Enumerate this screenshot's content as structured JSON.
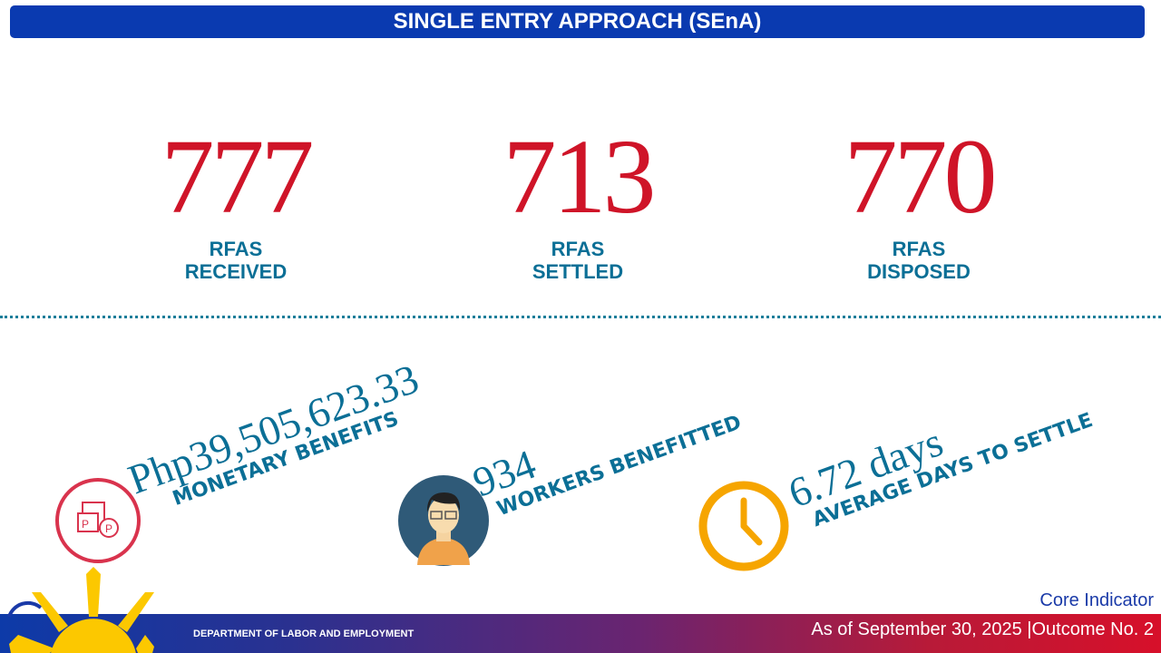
{
  "title": "SINGLE ENTRY APPROACH (SEnA)",
  "stats": [
    {
      "value": "777",
      "line1": "RFAS",
      "line2": "RECEIVED"
    },
    {
      "value": "713",
      "line1": "RFAS",
      "line2": "SETTLED"
    },
    {
      "value": "770",
      "line1": "RFAS",
      "line2": "DISPOSED"
    }
  ],
  "metrics": [
    {
      "value": "Php39,505,623.33",
      "label": "MONETARY BENEFITS",
      "icon": "money-icon"
    },
    {
      "value": "934",
      "label": "WORKERS BENEFITTED",
      "icon": "worker-avatar-icon"
    },
    {
      "value": "6.72 days",
      "label": "AVERAGE DAYS TO SETTLE",
      "icon": "clock-icon"
    }
  ],
  "footer": {
    "department": "DEPARTMENT OF LABOR AND EMPLOYMENT",
    "core": "Core Indicator",
    "as_of": "As of September 30, 2025 |Outcome No. 2"
  },
  "colors": {
    "banner": "#0a3ab0",
    "number": "#cf1428",
    "label": "#0b6f96"
  }
}
